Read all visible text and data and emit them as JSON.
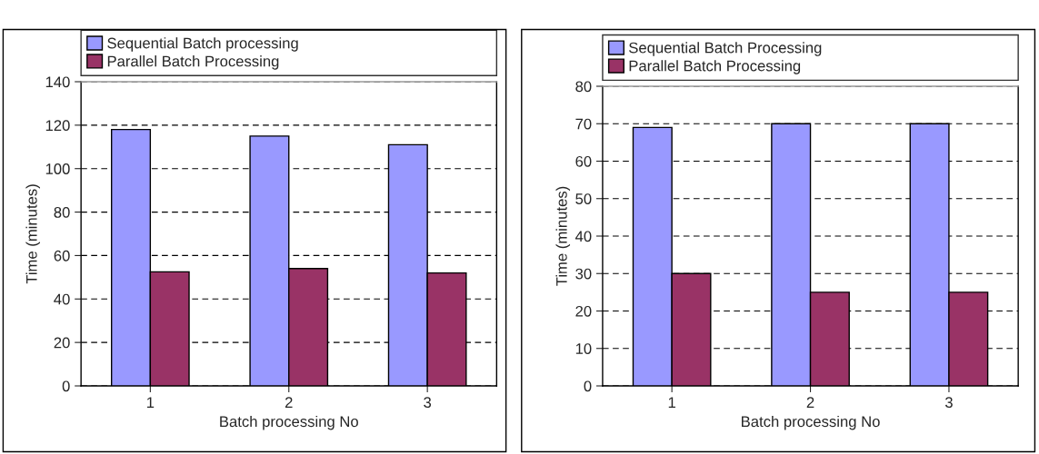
{
  "chart_data": [
    {
      "type": "bar",
      "xlabel": "Batch processing No",
      "ylabel": "Time (minutes)",
      "categories": [
        "1",
        "2",
        "3"
      ],
      "series": [
        {
          "name": "Sequential Batch processing",
          "color": "#9999ff",
          "values": [
            118,
            115,
            111
          ]
        },
        {
          "name": "Parallel Batch Processing",
          "color": "#993366",
          "values": [
            52.5,
            54,
            52
          ]
        }
      ],
      "ylim": [
        0,
        140
      ],
      "yticks": [
        0,
        20,
        40,
        60,
        80,
        100,
        120,
        140
      ],
      "grid": "y",
      "legend": "top"
    },
    {
      "type": "bar",
      "xlabel": "Batch processing No",
      "ylabel": "Time (minutes)",
      "categories": [
        "1",
        "2",
        "3"
      ],
      "series": [
        {
          "name": "Sequential Batch Processing",
          "color": "#9999ff",
          "values": [
            69,
            70,
            70
          ]
        },
        {
          "name": "Parallel Batch Processing",
          "color": "#993366",
          "values": [
            30,
            25,
            25
          ]
        }
      ],
      "ylim": [
        0,
        80
      ],
      "yticks": [
        0,
        10,
        20,
        30,
        40,
        50,
        60,
        70,
        80
      ],
      "grid": "y",
      "legend": "top"
    }
  ]
}
